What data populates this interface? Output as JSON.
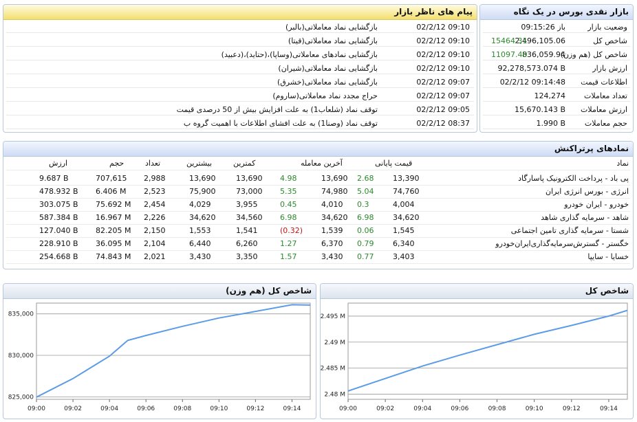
{
  "market_glance": {
    "title": "بازار نقدی بورس در یک نگاه",
    "rows": [
      {
        "label": "وضعیت بازار",
        "value": "باز 09:15:26",
        "extra": ""
      },
      {
        "label": "شاخص کل",
        "value": "2,496,105.06",
        "extra": "15464.31"
      },
      {
        "label": "شاخص کل (هم وزن)",
        "value": "836,059.94",
        "extra": "11097.40"
      },
      {
        "label": "ارزش بازار",
        "value": "92,278,573.074 B",
        "extra": ""
      },
      {
        "label": "اطلاعات قیمت",
        "value": "02/2/12 09:14:48",
        "extra": ""
      },
      {
        "label": "تعداد معاملات",
        "value": "124,274",
        "extra": ""
      },
      {
        "label": "ارزش معاملات",
        "value": "15,670.143 B",
        "extra": ""
      },
      {
        "label": "حجم معاملات",
        "value": "1.990 B",
        "extra": ""
      }
    ]
  },
  "messages": {
    "title": "پیام های ناظر بازار",
    "rows": [
      {
        "date": "02/2/12 09:10",
        "text": "بازگشایی نماد معاملاتی(بالبر)"
      },
      {
        "date": "02/2/12 09:10",
        "text": "بازگشایی نماد معاملاتی(قیتا)"
      },
      {
        "date": "02/2/12 09:10",
        "text": "بازگشایی نمادهای معاملاتی(وساپا)،(حتاید)،(دعبید)"
      },
      {
        "date": "02/2/12 09:10",
        "text": "بازگشایی نماد معاملاتی(شیران)"
      },
      {
        "date": "02/2/12 09:07",
        "text": "بازگشایی نماد معاملاتی(خشرق)"
      },
      {
        "date": "02/2/12 09:07",
        "text": "حراج مجدد نماد معاملاتی(ساروم)"
      },
      {
        "date": "02/2/12 09:05",
        "text": "توقف نماد (شلعاب1) به علت افزایش بیش از 50 درصدی قیمت"
      },
      {
        "date": "02/2/12 08:37",
        "text": "توقف نماد (وصنا1) به علت افشای اطلاعات با اهمیت گروه ب"
      }
    ]
  },
  "top_symbols": {
    "title": "نمادهای پرتراکنش",
    "headers": {
      "symbol": "نماد",
      "final_price": "قیمت پایانی",
      "last_trade": "آخرین معامله",
      "low": "کمترین",
      "high": "بیشترین",
      "count": "تعداد",
      "volume": "حجم",
      "value": "ارزش"
    },
    "rows": [
      {
        "symbol": "پی باد - پرداخت الکترونیک پاسارگاد",
        "final": "13,390",
        "final_chg": "2.68",
        "last": "13,690",
        "last_chg": "4.98",
        "low": "13,690",
        "high": "13,690",
        "count": "2,988",
        "volume": "707,615",
        "value": "9.687 B"
      },
      {
        "symbol": "انرژی - بورس انرژی ایران",
        "final": "74,760",
        "final_chg": "5.04",
        "last": "74,980",
        "last_chg": "5.35",
        "low": "73,000",
        "high": "75,900",
        "count": "2,523",
        "volume": "6.406 M",
        "value": "478.932 B"
      },
      {
        "symbol": "خودرو - ایران خودرو",
        "final": "4,004",
        "final_chg": "0.3",
        "last": "4,010",
        "last_chg": "0.45",
        "low": "3,955",
        "high": "4,029",
        "count": "2,454",
        "volume": "75.692 M",
        "value": "303.075 B"
      },
      {
        "symbol": "شاهد - سرمایه گذاری شاهد",
        "final": "34,620",
        "final_chg": "6.98",
        "last": "34,620",
        "last_chg": "6.98",
        "low": "34,560",
        "high": "34,620",
        "count": "2,226",
        "volume": "16.967 M",
        "value": "587.384 B"
      },
      {
        "symbol": "شستا - سرمایه گذاری تامین اجتماعی",
        "final": "1,545",
        "final_chg": "0.06",
        "last": "1,539",
        "last_chg": "(0.32)",
        "low": "1,541",
        "high": "1,553",
        "count": "2,150",
        "volume": "82.205 M",
        "value": "127.040 B"
      },
      {
        "symbol": "خگستر - گسترش‌سرمایه‌گذاری‌ایران‌خودرو",
        "final": "6,340",
        "final_chg": "0.79",
        "last": "6,370",
        "last_chg": "1.27",
        "low": "6,260",
        "high": "6,440",
        "count": "2,104",
        "volume": "36.095 M",
        "value": "228.910 B"
      },
      {
        "symbol": "خسایا - سایپا",
        "final": "3,403",
        "final_chg": "0.77",
        "last": "3,430",
        "last_chg": "1.57",
        "low": "3,350",
        "high": "3,430",
        "count": "2,021",
        "volume": "74.843 M",
        "value": "254.668 B"
      }
    ]
  },
  "colors": {
    "positive": "#2a8a2a",
    "negative": "#cc1111",
    "line": "#5b9be8"
  },
  "chart_data": [
    {
      "type": "line",
      "title": "شاخص کل (هم وزن)",
      "x": [
        "09:00",
        "09:02",
        "09:04",
        "09:05",
        "09:06",
        "09:08",
        "09:10",
        "09:12",
        "09:14",
        "09:15"
      ],
      "x_ticks": [
        "09:00",
        "09:02",
        "09:04",
        "09:06",
        "09:08",
        "09:10",
        "09:12",
        "09:14"
      ],
      "y_ticks": [
        "825,000",
        "830,000",
        "835,000"
      ],
      "ylim": [
        824700,
        836300
      ],
      "series": [
        {
          "values": [
            824963,
            827200,
            829900,
            831800,
            832400,
            833500,
            834500,
            835300,
            836100,
            836060
          ]
        }
      ]
    },
    {
      "type": "line",
      "title": "شاخص کل",
      "x": [
        "09:00",
        "09:02",
        "09:04",
        "09:06",
        "09:08",
        "09:10",
        "09:12",
        "09:14",
        "09:15"
      ],
      "x_ticks": [
        "09:00",
        "09:02",
        "09:04",
        "09:06",
        "09:08",
        "09:10",
        "09:12",
        "09:14"
      ],
      "y_ticks": [
        "2.48 M",
        "2.485 M",
        "2.49 M",
        "2.495 M"
      ],
      "ylim": [
        2479000,
        2497500
      ],
      "series": [
        {
          "values": [
            2480600,
            2483000,
            2485400,
            2487500,
            2489500,
            2491500,
            2493200,
            2495000,
            2496105
          ]
        }
      ]
    }
  ]
}
